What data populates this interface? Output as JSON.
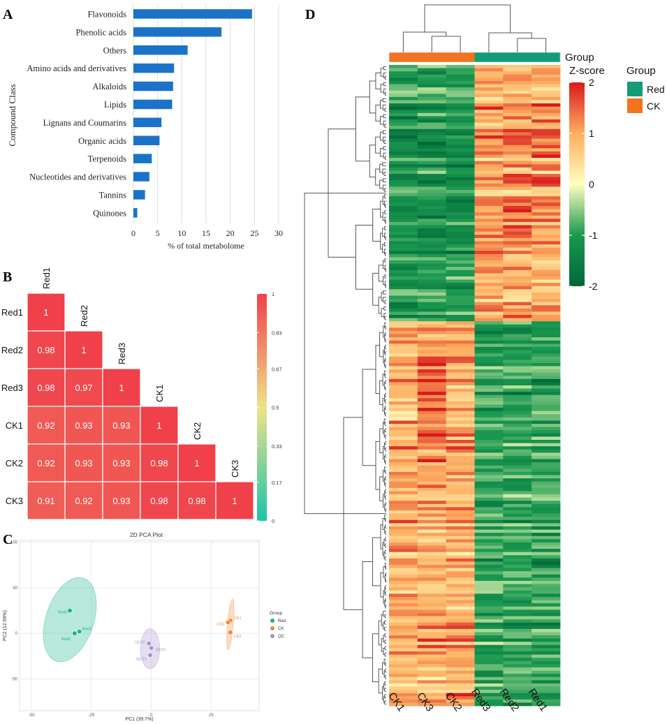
{
  "panels": {
    "a": "A",
    "b": "B",
    "c": "C",
    "d": "D"
  },
  "chart_data": [
    {
      "panel": "A",
      "type": "bar",
      "orientation": "horizontal",
      "categories": [
        "Flavonoids",
        "Phenolic acids",
        "Others",
        "Amino acids and derivatives",
        "Alkaloids",
        "Lipids",
        "Lignans and Coumarins",
        "Organic acids",
        "Terpenoids",
        "Nucleotides and derivatives",
        "Tannins",
        "Quinones"
      ],
      "values": [
        24.5,
        18.2,
        11.2,
        8.4,
        8.2,
        8.0,
        5.8,
        5.4,
        3.8,
        3.3,
        2.4,
        0.8
      ],
      "xlabel": "% of total metabolome",
      "ylabel": "Compound Class",
      "xlim": [
        0,
        30
      ],
      "xticks": [
        "0",
        "5",
        "10",
        "15",
        "20",
        "25",
        "30"
      ],
      "bar_color": "#1a73c8"
    },
    {
      "panel": "B",
      "type": "heatmap",
      "subtype": "lower-triangle correlation",
      "labels": [
        "Red1",
        "Red2",
        "Red3",
        "CK1",
        "CK2",
        "CK3"
      ],
      "matrix": [
        [
          "1"
        ],
        [
          "0.98",
          "1"
        ],
        [
          "0.98",
          "0.97",
          "1"
        ],
        [
          "0.92",
          "0.93",
          "0.93",
          "1"
        ],
        [
          "0.92",
          "0.93",
          "0.93",
          "0.98",
          "1"
        ],
        [
          "0.91",
          "0.92",
          "0.93",
          "0.98",
          "0.98",
          "1"
        ]
      ],
      "colorbar_ticks": [
        "1",
        "0.83",
        "0.67",
        "0.5",
        "0.33",
        "0.17",
        "0"
      ],
      "colors": {
        "high": "#f0404a",
        "mid": "#efe28a",
        "low": "#1cc4a6"
      }
    },
    {
      "panel": "C",
      "type": "scatter",
      "title": "2D PCA Plot",
      "xlabel": "PC1 (39.7%)",
      "ylabel": "PC2 (12.59%)",
      "xlim": [
        -55,
        45
      ],
      "ylim": [
        -85,
        102
      ],
      "xticks": [
        "-50",
        "-25",
        "0",
        "25"
      ],
      "yticks": [
        "100",
        "50",
        "0",
        "-50"
      ],
      "legend_title": "Group",
      "series": [
        {
          "name": "Red",
          "color": "#17b38e",
          "points": [
            {
              "label": "Red3",
              "x": -34,
              "y": 25
            },
            {
              "label": "Red1",
              "x": -30,
              "y": 2
            },
            {
              "label": "Red2",
              "x": -32,
              "y": 0
            }
          ],
          "ellipse": {
            "cx": -34,
            "cy": 15,
            "rx": 10,
            "ry": 48,
            "angle": 18
          }
        },
        {
          "name": "CK",
          "color": "#f28a3c",
          "points": [
            {
              "label": "CK1",
              "x": 33,
              "y": 14
            },
            {
              "label": "CK3",
              "x": 32,
              "y": 12
            },
            {
              "label": "CK2",
              "x": 33,
              "y": 1
            }
          ],
          "ellipse": {
            "cx": 33,
            "cy": 10,
            "rx": 1.2,
            "ry": 28,
            "angle": 5
          }
        },
        {
          "name": "QC",
          "color": "#a692cc",
          "points": [
            {
              "label": "QC02",
              "x": -1,
              "y": -11
            },
            {
              "label": "QC01",
              "x": 0,
              "y": -16
            },
            {
              "label": "QC03",
              "x": -0.5,
              "y": -24
            }
          ],
          "ellipse": {
            "cx": -0.5,
            "cy": -17,
            "rx": 4,
            "ry": 22,
            "angle": 0
          }
        }
      ]
    },
    {
      "panel": "D",
      "type": "heatmap",
      "subtype": "clustered Z-score heatmap",
      "columns": [
        "CK1",
        "CK3",
        "CK2",
        "Red3",
        "Red2",
        "Red1"
      ],
      "column_groups": [
        "CK",
        "CK",
        "CK",
        "Red",
        "Red",
        "Red"
      ],
      "group_annotation_label": "Group",
      "legend_title": "Group",
      "legend_items": [
        {
          "label": "Red",
          "color": "#159b79"
        },
        {
          "label": "CK",
          "color": "#f27420"
        }
      ],
      "zscore_title": "Z-score",
      "zscore_ticks": [
        "2",
        "1",
        "0",
        "-1",
        "-2"
      ],
      "zlim": [
        -2,
        2
      ],
      "row_count": 200,
      "row_clusters": [
        {
          "rows": 80,
          "pattern": "high in Red, low in CK"
        },
        {
          "rows": 120,
          "pattern": "high in CK, low in Red"
        }
      ]
    }
  ]
}
